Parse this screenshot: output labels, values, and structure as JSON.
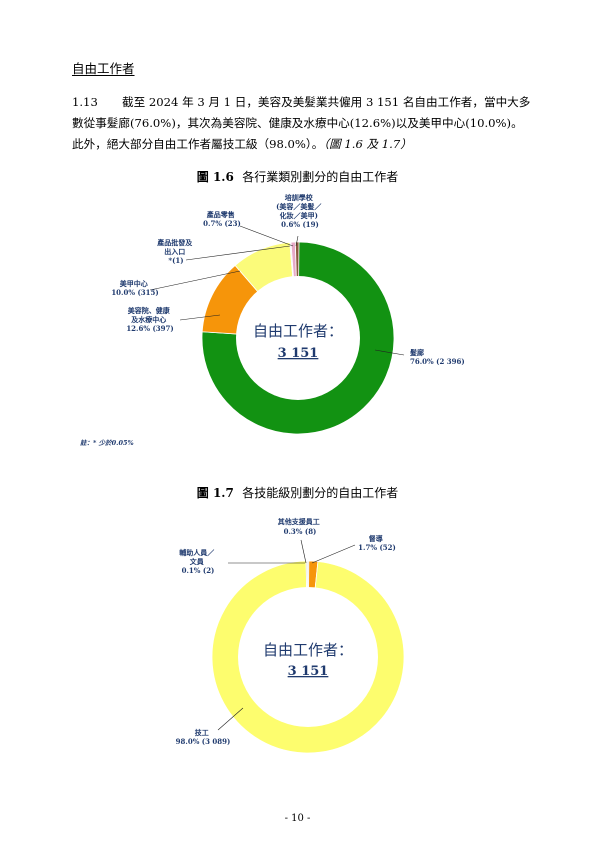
{
  "section_heading": "自由工作者",
  "paragraph": {
    "number": "1.13",
    "line1": "截至 2024 年 3 月 1 日，美容及美髮業共僱用 3 151 名自由工作者，當中大多",
    "line2": "數從事髮廊(76.0%)，其次為美容院、健康及水療中心(12.6%)以及美甲中心(10.0%)。",
    "line3_a": "此外，絕大部分自由工作者屬技工級（98.0%）。",
    "line3_b": "（圖 1.6 及 1.7）"
  },
  "figure1": {
    "title_num": "圖 1.6",
    "title_text": "各行業類別劃分的自由工作者",
    "center_label": "自由工作者：",
    "center_value": "3 151",
    "note": "註：* 少於0.05%",
    "colors": [
      "#129212",
      "#f6950a",
      "#fbfb7a",
      "#e8e8ee",
      "#e7aac8",
      "#8a5a3e"
    ],
    "labels": {
      "hair": [
        "髮廊",
        "76.0% (2 396)"
      ],
      "beauty": [
        "美容院、健康",
        "及水療中心",
        "12.6% (397)"
      ],
      "nail": [
        "美甲中心",
        "10.0% (315)"
      ],
      "wholesale": [
        "產品批發及",
        "出入口",
        "*(1)"
      ],
      "retail": [
        "產品零售",
        "0.7% (23)"
      ],
      "training": [
        "培訓學校",
        "(美容／美髮／",
        "化妝／美甲)",
        "0.6% (19)"
      ]
    }
  },
  "figure2": {
    "title_num": "圖 1.7",
    "title_text": "各技能級別劃分的自由工作者",
    "center_label": "自由工作者：",
    "center_value": "3 151",
    "colors": [
      "#fdfd6e",
      "#f6950a",
      "#d8d8d8",
      "#c9c9c9"
    ],
    "labels": {
      "skilled": [
        "技工",
        "98.0% (3 089)"
      ],
      "supervisor": [
        "督導",
        "1.7% (52)"
      ],
      "other": [
        "其他支援員工",
        "0.3% (8)"
      ],
      "clerk": [
        "輔助人員／",
        "文員",
        "0.1% (2)"
      ]
    }
  },
  "chart_data": [
    {
      "type": "pie",
      "title": "各行業類別劃分的自由工作者",
      "categories": [
        "髮廊",
        "美容院、健康及水療中心",
        "美甲中心",
        "產品批發及出入口",
        "產品零售",
        "培訓學校(美容／美髮／化妝／美甲)"
      ],
      "values": [
        2396,
        397,
        315,
        1,
        23,
        19
      ],
      "percent": [
        76.0,
        12.6,
        10.0,
        0.0,
        0.7,
        0.6
      ]
    },
    {
      "type": "pie",
      "title": "各技能級別劃分的自由工作者",
      "categories": [
        "技工",
        "督導",
        "其他支援員工",
        "輔助人員／文員"
      ],
      "values": [
        3089,
        52,
        8,
        2
      ],
      "percent": [
        98.0,
        1.7,
        0.3,
        0.1
      ]
    }
  ],
  "page_number": "- 10 -"
}
